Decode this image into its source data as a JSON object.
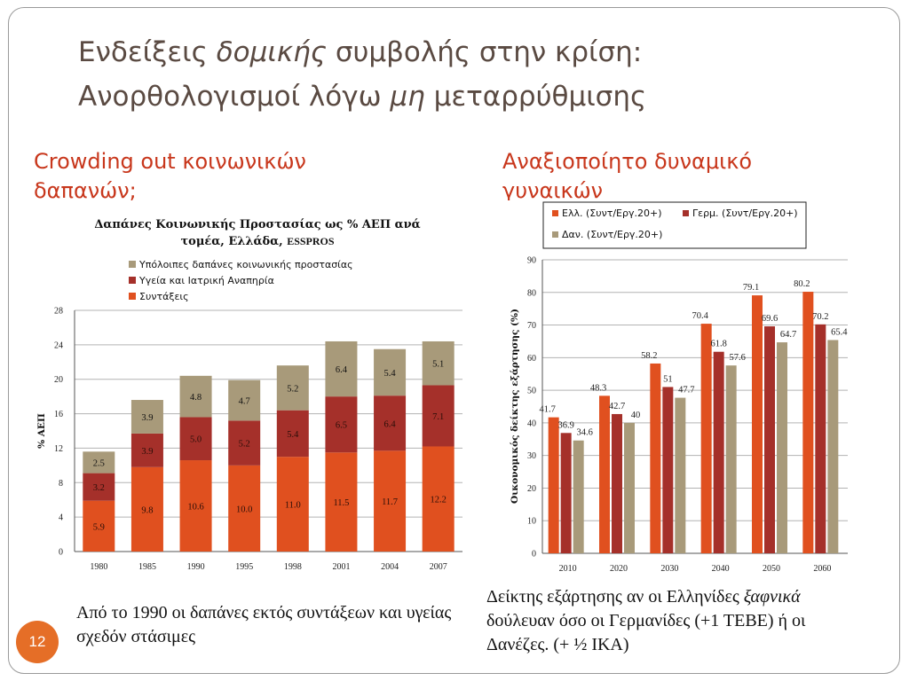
{
  "title": {
    "line1_a": "Ενδείξεις ",
    "line1_em": "δομικής",
    "line1_b": " συμβολής στην κρίση:",
    "line2_a": "Ανορθολογισμοί λόγω ",
    "line2_em": "μη",
    "line2_b": " μεταρρύθμισης"
  },
  "left_heading": "Crowding out κοινωνικών δαπανών;",
  "right_heading": "Αναξιοποίητο δυναμικό γυναικών",
  "left_caption": "Από το 1990 οι δαπάνες εκτός συντάξεων και υγείας σχεδόν στάσιμες",
  "right_caption": {
    "a": "Δείκτης εξάρτησης αν οι Ελληνίδες ",
    "em": "ξαφνικά",
    "b": " δούλευαν όσο οι Γερμανίδες (+1 ΤΕΒΕ)  ή οι Δανέζες.  (+ ½ ΙΚΑ)"
  },
  "page_number": "12",
  "colors": {
    "accent_orange": "#e56e27",
    "heading_red": "#c8371c",
    "title_brown": "#5a4a42",
    "series_orange": "#e0501f",
    "series_darkred": "#a5302a",
    "series_tan": "#a89a7a"
  },
  "chart_data": [
    {
      "type": "bar",
      "stacked": true,
      "title_line1": "Δαπάνες Κοινωνικής Προστασίας ως % ΑΕΠ ανά",
      "title_line2": "τομέα, Ελλάδα, ",
      "title_source": "ESSPROS",
      "xlabel": "",
      "ylabel": "% ΑΕΠ",
      "ylim": [
        0,
        28
      ],
      "yticks": [
        0,
        4,
        8,
        12,
        16,
        20,
        24,
        28
      ],
      "grid": true,
      "legend_position": "top",
      "categories": [
        "1980",
        "1985",
        "1990",
        "1995",
        "1998",
        "2001",
        "2004",
        "2007"
      ],
      "series": [
        {
          "name": "Συντάξεις",
          "color": "#e0501f",
          "values": [
            5.9,
            9.8,
            10.6,
            10.0,
            11.0,
            11.5,
            11.7,
            12.2
          ],
          "labels": [
            "5.9",
            "9.8",
            "10.6",
            "10.0",
            "11.0",
            "11.5",
            "11.7",
            "12.2"
          ]
        },
        {
          "name": "Υγεία και Ιατρική Αναπηρία",
          "color": "#a5302a",
          "values": [
            3.2,
            3.9,
            5.0,
            5.2,
            5.4,
            6.5,
            6.4,
            7.1
          ],
          "labels": [
            "3.2",
            "3.9",
            "5.0",
            "5.2",
            "5.4",
            "6.5",
            "6.4",
            "7.1"
          ]
        },
        {
          "name": "Υπόλοιπες δαπάνες κοινωνικής προστασίας",
          "color": "#a89a7a",
          "values": [
            2.5,
            3.9,
            4.8,
            4.7,
            5.2,
            6.4,
            5.4,
            5.1
          ],
          "labels": [
            "2.5",
            "3.9",
            "4.8",
            "4.7",
            "5.2",
            "6.4",
            "5.4",
            "5.1"
          ]
        }
      ]
    },
    {
      "type": "bar",
      "title": "",
      "xlabel": "",
      "ylabel": "Οικονομικός δείκτης εξάρτησης (%)",
      "ylim": [
        0,
        90
      ],
      "yticks": [
        0,
        10,
        20,
        30,
        40,
        50,
        60,
        70,
        80,
        90
      ],
      "grid": true,
      "legend_position": "top",
      "categories": [
        "2010",
        "2020",
        "2030",
        "2040",
        "2050",
        "2060"
      ],
      "series": [
        {
          "name": "Ελλ. (Συντ/Εργ.20+)",
          "color": "#e0501f",
          "values": [
            41.7,
            48.3,
            58.2,
            70.4,
            79.1,
            80.2
          ],
          "labels": [
            "41.7",
            "48.3",
            "58.2",
            "70.4",
            "79.1",
            "80.2"
          ]
        },
        {
          "name": "Γερμ. (Συντ/Εργ.20+)",
          "color": "#a5302a",
          "values": [
            36.9,
            42.7,
            51,
            61.8,
            69.6,
            70.2
          ],
          "labels": [
            "36.9",
            "42.7",
            "51",
            "61.8",
            "69.6",
            "70.2"
          ]
        },
        {
          "name": "Δαν. (Συντ/Εργ.20+)",
          "color": "#a89a7a",
          "values": [
            34.6,
            40,
            47.7,
            57.6,
            64.7,
            65.4
          ],
          "labels": [
            "34.6",
            "40",
            "47.7",
            "57.6",
            "64.7",
            "65.4"
          ]
        }
      ]
    }
  ]
}
